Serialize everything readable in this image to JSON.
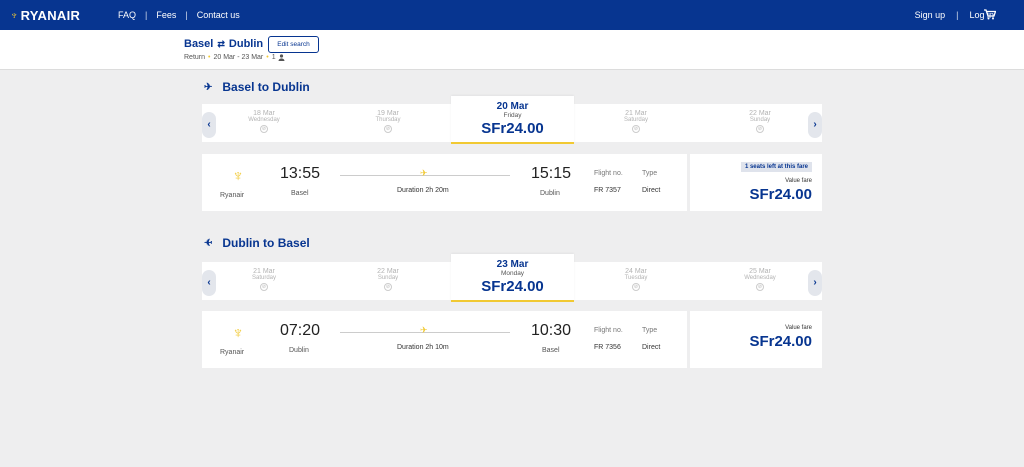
{
  "nav": {
    "logo": "RYANAIR",
    "links": [
      "FAQ",
      "Fees",
      "Contact us"
    ],
    "right_links": [
      "Sign up",
      "Log in"
    ]
  },
  "trip": {
    "origin": "Basel",
    "destination": "Dublin",
    "edit_label": "Edit search",
    "type": "Return",
    "dates": "20 Mar - 23 Mar",
    "passengers": "1"
  },
  "outbound": {
    "title": "Basel to Dublin",
    "dates": [
      {
        "date": "18 Mar",
        "day": "Wednesday"
      },
      {
        "date": "19 Mar",
        "day": "Thursday"
      },
      {
        "date": "20 Mar",
        "day": "Friday",
        "price": "SFr24.00"
      },
      {
        "date": "21 Mar",
        "day": "Saturday"
      },
      {
        "date": "22 Mar",
        "day": "Sunday"
      }
    ],
    "flight": {
      "airline": "Ryanair",
      "dep_time": "13:55",
      "dep_city": "Basel",
      "duration": "Duration 2h 20m",
      "arr_time": "15:15",
      "arr_city": "Dublin",
      "flight_no_label": "Flight no.",
      "flight_no": "FR 7357",
      "type_label": "Type",
      "type": "Direct",
      "seats_left": "1 seats left at this fare",
      "fare_type": "Value fare",
      "price": "SFr24.00"
    }
  },
  "inbound": {
    "title": "Dublin to Basel",
    "dates": [
      {
        "date": "21 Mar",
        "day": "Saturday"
      },
      {
        "date": "22 Mar",
        "day": "Sunday"
      },
      {
        "date": "23 Mar",
        "day": "Monday",
        "price": "SFr24.00"
      },
      {
        "date": "24 Mar",
        "day": "Tuesday"
      },
      {
        "date": "25 Mar",
        "day": "Wednesday"
      }
    ],
    "flight": {
      "airline": "Ryanair",
      "dep_time": "07:20",
      "dep_city": "Dublin",
      "duration": "Duration 2h 10m",
      "arr_time": "10:30",
      "arr_city": "Basel",
      "flight_no_label": "Flight no.",
      "flight_no": "FR 7356",
      "type_label": "Type",
      "type": "Direct",
      "fare_type": "Value fare",
      "price": "SFr24.00"
    }
  },
  "colors": {
    "brand": "#073590",
    "accent": "#f1c933"
  },
  "icons": [
    "harp-logo-icon",
    "cart-icon",
    "swap-icon",
    "plane-icon",
    "chevron-left-icon",
    "chevron-right-icon",
    "unavailable-icon",
    "user-icon"
  ]
}
